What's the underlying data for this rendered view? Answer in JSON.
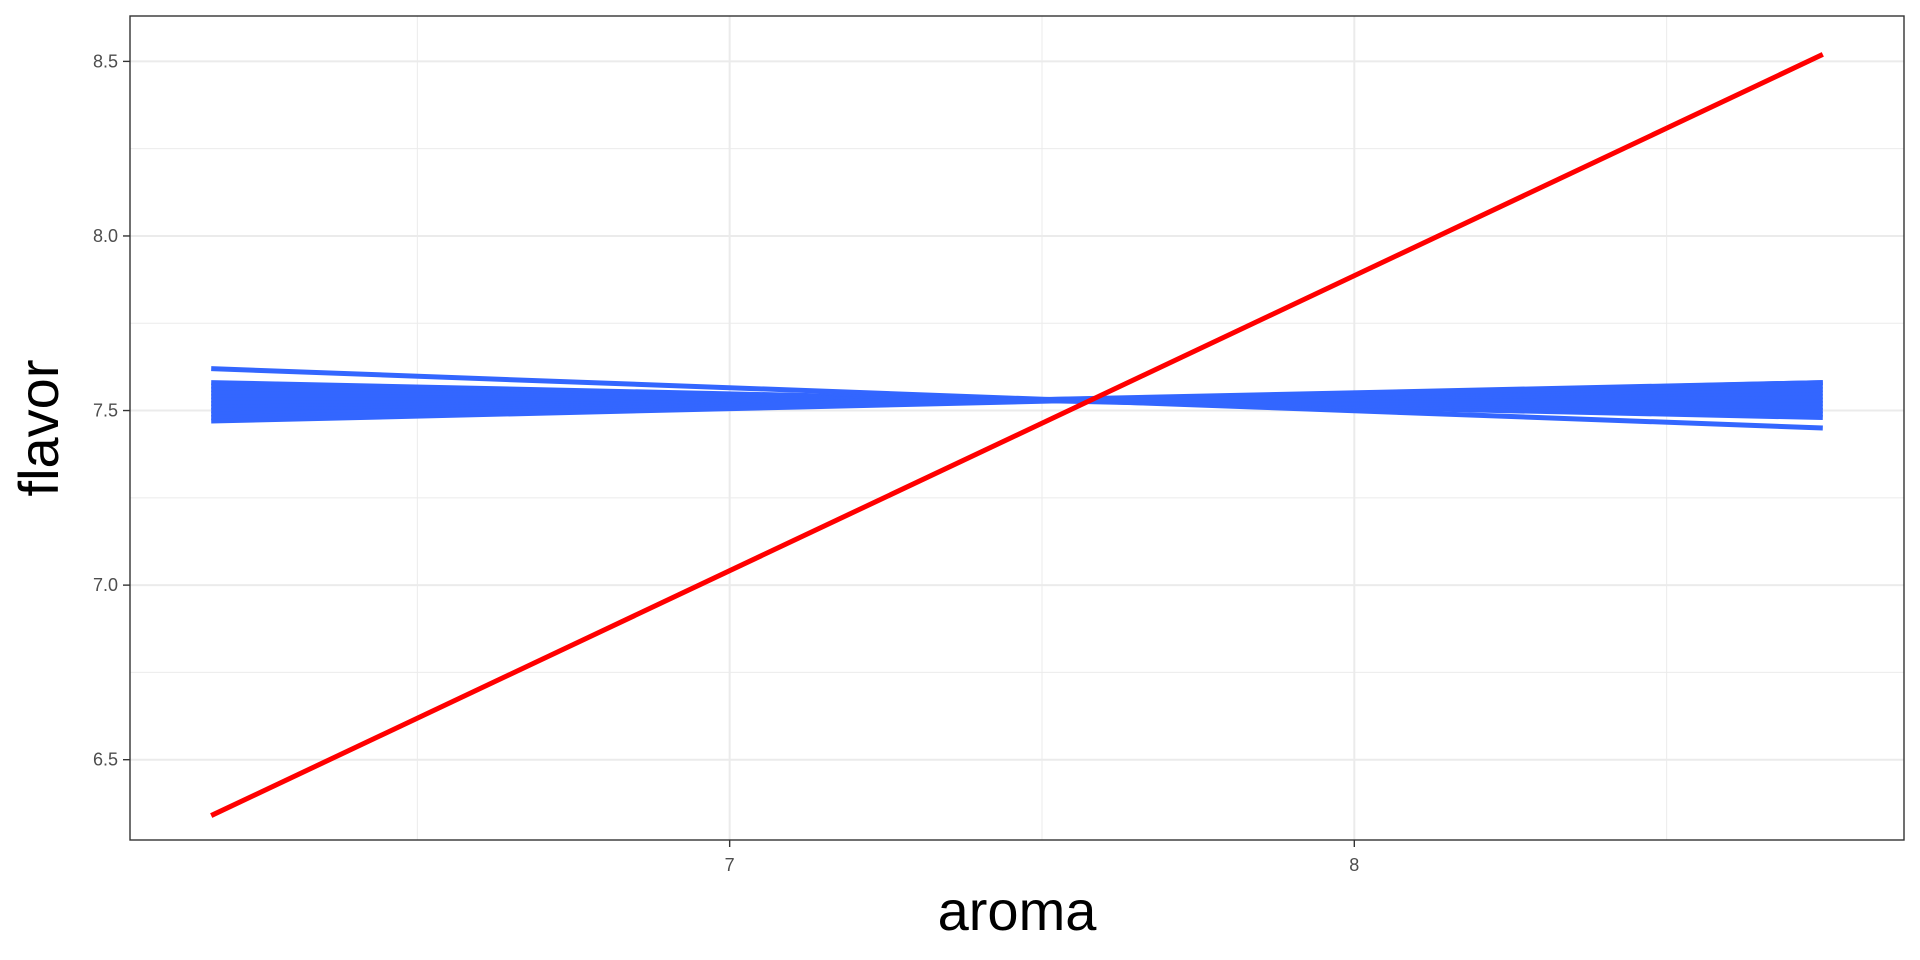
{
  "chart_data": {
    "type": "line",
    "title": "",
    "xlabel": "aroma",
    "ylabel": "flavor",
    "xlim": [
      6.04,
      8.88
    ],
    "ylim": [
      6.27,
      8.63
    ],
    "x_ticks": [
      7,
      8
    ],
    "x_tick_labels": [
      "7",
      "8"
    ],
    "x_minor_ticks": [
      6.5,
      7.5,
      8.5
    ],
    "y_ticks": [
      6.5,
      7.0,
      7.5,
      8.0,
      8.5
    ],
    "y_tick_labels": [
      "6.5",
      "7.0",
      "7.5",
      "8.0",
      "8.5"
    ],
    "y_minor_ticks": [
      6.75,
      7.25,
      7.75,
      8.25
    ],
    "grid": true,
    "legend": "none",
    "colors": {
      "blue": "#3366ff",
      "red": "#ff0000",
      "grid": "#ebebeb",
      "panel_border": "#333333"
    },
    "series": [
      {
        "color": "#3366ff",
        "x": [
          6.17,
          8.75
        ],
        "y": [
          7.62,
          7.45
        ]
      },
      {
        "color": "#3366ff",
        "x": [
          6.17,
          8.75
        ],
        "y": [
          7.58,
          7.48
        ]
      },
      {
        "color": "#3366ff",
        "x": [
          6.17,
          8.75
        ],
        "y": [
          7.57,
          7.49
        ]
      },
      {
        "color": "#3366ff",
        "x": [
          6.17,
          8.75
        ],
        "y": [
          7.56,
          7.5
        ]
      },
      {
        "color": "#3366ff",
        "x": [
          6.17,
          8.75
        ],
        "y": [
          7.55,
          7.51
        ]
      },
      {
        "color": "#3366ff",
        "x": [
          6.17,
          8.75
        ],
        "y": [
          7.54,
          7.52
        ]
      },
      {
        "color": "#3366ff",
        "x": [
          6.17,
          8.75
        ],
        "y": [
          7.53,
          7.53
        ]
      },
      {
        "color": "#3366ff",
        "x": [
          6.17,
          8.75
        ],
        "y": [
          7.52,
          7.54
        ]
      },
      {
        "color": "#3366ff",
        "x": [
          6.17,
          8.75
        ],
        "y": [
          7.51,
          7.55
        ]
      },
      {
        "color": "#3366ff",
        "x": [
          6.17,
          8.75
        ],
        "y": [
          7.5,
          7.56
        ]
      },
      {
        "color": "#3366ff",
        "x": [
          6.17,
          8.75
        ],
        "y": [
          7.49,
          7.57
        ]
      },
      {
        "color": "#3366ff",
        "x": [
          6.17,
          8.75
        ],
        "y": [
          7.48,
          7.58
        ]
      },
      {
        "color": "#3366ff",
        "x": [
          6.17,
          8.75
        ],
        "y": [
          7.47,
          7.58
        ]
      },
      {
        "color": "#ff0000",
        "x": [
          6.17,
          8.75
        ],
        "y": [
          6.34,
          8.52
        ]
      }
    ]
  }
}
